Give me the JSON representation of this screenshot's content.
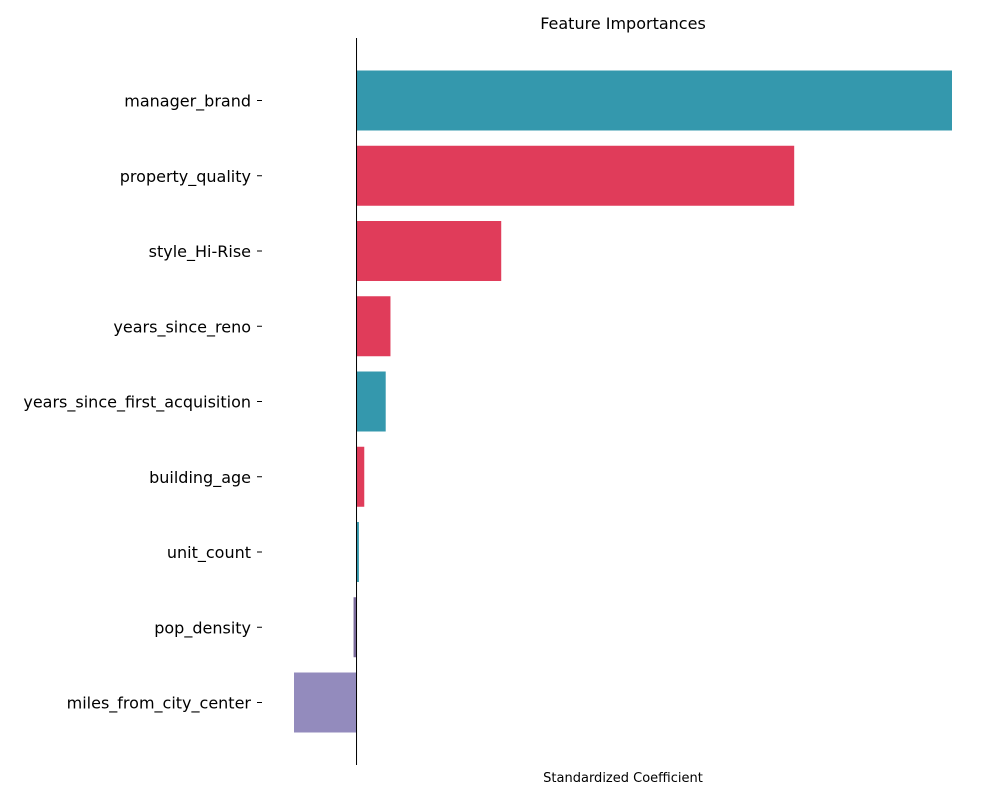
{
  "chart_data": {
    "type": "bar",
    "orientation": "horizontal",
    "title": "Feature Importances",
    "xlabel": "Standardized Coefficient",
    "ylabel": "",
    "grid": false,
    "legend": "none",
    "xlim": [
      -0.105,
      1.0
    ],
    "categories": [
      "manager_brand",
      "property_quality",
      "style_Hi-Rise",
      "years_since_reno",
      "years_since_first_acquisition",
      "building_age",
      "unit_count",
      "pop_density",
      "miles_from_city_center"
    ],
    "values": [
      1.0,
      0.735,
      0.243,
      0.057,
      0.049,
      0.013,
      0.004,
      -0.005,
      -0.105
    ],
    "colors": [
      "#3498ad",
      "#e03c5a",
      "#e03c5a",
      "#e03c5a",
      "#3498ad",
      "#e03c5a",
      "#3498ad",
      "#7a6a9a",
      "#938bbd"
    ],
    "axis_color": "#000000"
  }
}
